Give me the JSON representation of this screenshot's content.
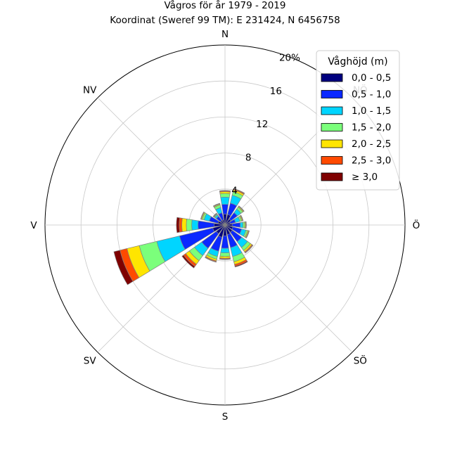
{
  "chart_data": {
    "type": "windrose",
    "title": "Vågros för år 1979 - 2019",
    "subtitle": "Koordinat (Sweref 99 TM): E 231424, N 6456758",
    "directions": [
      "N",
      "NNÖ",
      "NÖ",
      "ÖNÖ",
      "Ö",
      "ÖSÖ",
      "SÖ",
      "SSÖ",
      "S",
      "SSV",
      "SV",
      "VSV",
      "V",
      "VNV",
      "NV",
      "NNV"
    ],
    "direction_labels": [
      "N",
      "NV",
      "V",
      "SV",
      "S",
      "SÖ",
      "Ö",
      "NÖ"
    ],
    "radial_ticks": [
      "4",
      "8",
      "12",
      "16",
      "20%"
    ],
    "rmax": 20,
    "legend": {
      "title": "Våghöjd (m)",
      "placement": "top-right",
      "bins": [
        "0,0 - 0,5",
        "0,5 - 1,0",
        "1,0 - 1,5",
        "1,5 - 2,0",
        "2,0 - 2,5",
        "2,5 - 3,0",
        "≥ 3,0"
      ]
    },
    "colors": [
      "#00007f",
      "#0a28ff",
      "#00d5ff",
      "#7bff7b",
      "#ffe500",
      "#ff4a00",
      "#7f0000"
    ],
    "series": [
      {
        "name": "0,0 - 0,5",
        "values": [
          1.2,
          1.2,
          0.8,
          0.6,
          0.8,
          0.9,
          1.0,
          1.1,
          1.2,
          1.4,
          1.2,
          1.4,
          1.2,
          0.8,
          0.6,
          0.6
        ]
      },
      {
        "name": "0,5 - 1,0",
        "values": [
          1.1,
          1.3,
          0.9,
          0.6,
          0.9,
          1.0,
          1.3,
          1.5,
          1.4,
          1.6,
          2.0,
          3.8,
          1.8,
          1.0,
          0.6,
          0.8
        ]
      },
      {
        "name": "1,0 - 1,5",
        "values": [
          0.8,
          0.9,
          0.5,
          0.5,
          0.3,
          0.5,
          0.8,
          1.0,
          0.5,
          0.6,
          1.0,
          2.6,
          0.7,
          0.6,
          0.2,
          0.6
        ]
      },
      {
        "name": "1,5 - 2,0",
        "values": [
          0.4,
          0.4,
          0.25,
          0.2,
          0.2,
          0.2,
          0.4,
          0.6,
          0.4,
          0.3,
          0.7,
          2.0,
          0.6,
          0.2,
          0.1,
          0.3
        ]
      },
      {
        "name": "2,0 - 2,5",
        "values": [
          0.2,
          0.2,
          0.1,
          0.1,
          0.1,
          0.1,
          0.2,
          0.3,
          0.2,
          0.2,
          0.5,
          1.4,
          0.5,
          0.1,
          0.05,
          0.1
        ]
      },
      {
        "name": "2,5 - 3,0",
        "values": [
          0.1,
          0.1,
          0.05,
          0.05,
          0.05,
          0.05,
          0.1,
          0.2,
          0.1,
          0.1,
          0.3,
          0.8,
          0.3,
          0.05,
          0.05,
          0.05
        ]
      },
      {
        "name": "≥ 3,0",
        "values": [
          0.05,
          0.05,
          0.03,
          0.03,
          0.03,
          0.03,
          0.05,
          0.1,
          0.05,
          0.05,
          0.2,
          0.7,
          0.3,
          0.03,
          0.03,
          0.03
        ]
      }
    ]
  }
}
